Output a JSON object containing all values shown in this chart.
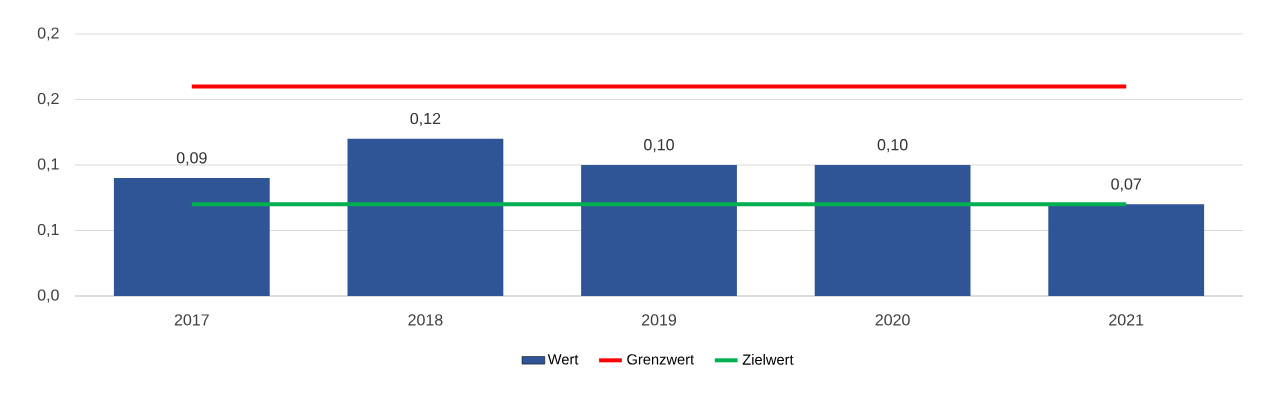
{
  "chart_data": {
    "type": "bar",
    "categories": [
      "2017",
      "2018",
      "2019",
      "2020",
      "2021"
    ],
    "series": [
      {
        "name": "Wert",
        "color": "#2f5597",
        "values": [
          0.09,
          0.12,
          0.1,
          0.1,
          0.07
        ],
        "value_labels": [
          "0,09",
          "0,12",
          "0,10",
          "0,10",
          "0,07"
        ]
      },
      {
        "name": "Grenzwert",
        "type": "line",
        "color": "#ff0000",
        "values": [
          0.16,
          0.16,
          0.16,
          0.16,
          0.16
        ]
      },
      {
        "name": "Zielwert",
        "type": "line",
        "color": "#00b050",
        "values": [
          0.07,
          0.07,
          0.07,
          0.07,
          0.07
        ]
      }
    ],
    "ylim": [
      0,
      0.2
    ],
    "yticks": [
      {
        "value": 0,
        "label": "0,0"
      },
      {
        "value": 0.05,
        "label": "0,1"
      },
      {
        "value": 0.1,
        "label": "0,1"
      },
      {
        "value": 0.15,
        "label": "0,2"
      },
      {
        "value": 0.2,
        "label": "0,2"
      }
    ],
    "grid": "y",
    "legend": "bottom",
    "marker": "none"
  }
}
